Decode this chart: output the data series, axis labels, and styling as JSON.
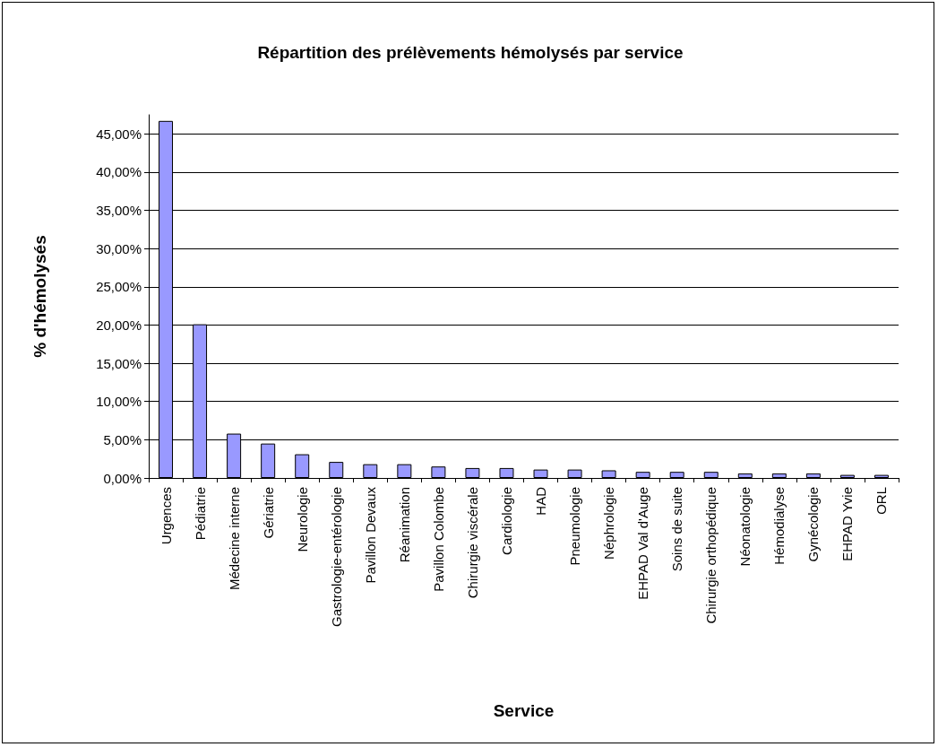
{
  "chart_data": {
    "type": "bar",
    "title": "Répartition des prélèvements hémolysés par service",
    "xlabel": "Service",
    "ylabel": "% d'hémolysés",
    "categories": [
      "Urgences",
      "Pédiatrie",
      "Médecine interne",
      "Gériatrie",
      "Neurologie",
      "Gastrologie-entérologie",
      "Pavillon Devaux",
      "Réanimation",
      "Pavillon Colombe",
      "Chirurgie viscérale",
      "Cardiologie",
      "HAD",
      "Pneumologie",
      "Néphrologie",
      "EHPAD Val d'Auge",
      "Soins de suite",
      "Chirurgie orthopédique",
      "Néonatologie",
      "Hémodialyse",
      "Gynécologie",
      "EHPAD Yvie",
      "ORL"
    ],
    "values": [
      46.7,
      20.1,
      5.8,
      4.5,
      3.1,
      2.1,
      1.8,
      1.8,
      1.5,
      1.3,
      1.3,
      1.1,
      1.1,
      1.0,
      0.8,
      0.8,
      0.8,
      0.6,
      0.6,
      0.6,
      0.4,
      0.4
    ],
    "color": "#9999ff",
    "ylim": [
      0,
      47.5
    ],
    "yticks": [
      {
        "value": 0,
        "label": "0,00%"
      },
      {
        "value": 5,
        "label": "5,00%"
      },
      {
        "value": 10,
        "label": "10,00%"
      },
      {
        "value": 15,
        "label": "15,00%"
      },
      {
        "value": 20,
        "label": "20,00%"
      },
      {
        "value": 25,
        "label": "25,00%"
      },
      {
        "value": 30,
        "label": "30,00%"
      },
      {
        "value": 35,
        "label": "35,00%"
      },
      {
        "value": 40,
        "label": "40,00%"
      },
      {
        "value": 45,
        "label": "45,00%"
      }
    ],
    "grid": "y"
  }
}
